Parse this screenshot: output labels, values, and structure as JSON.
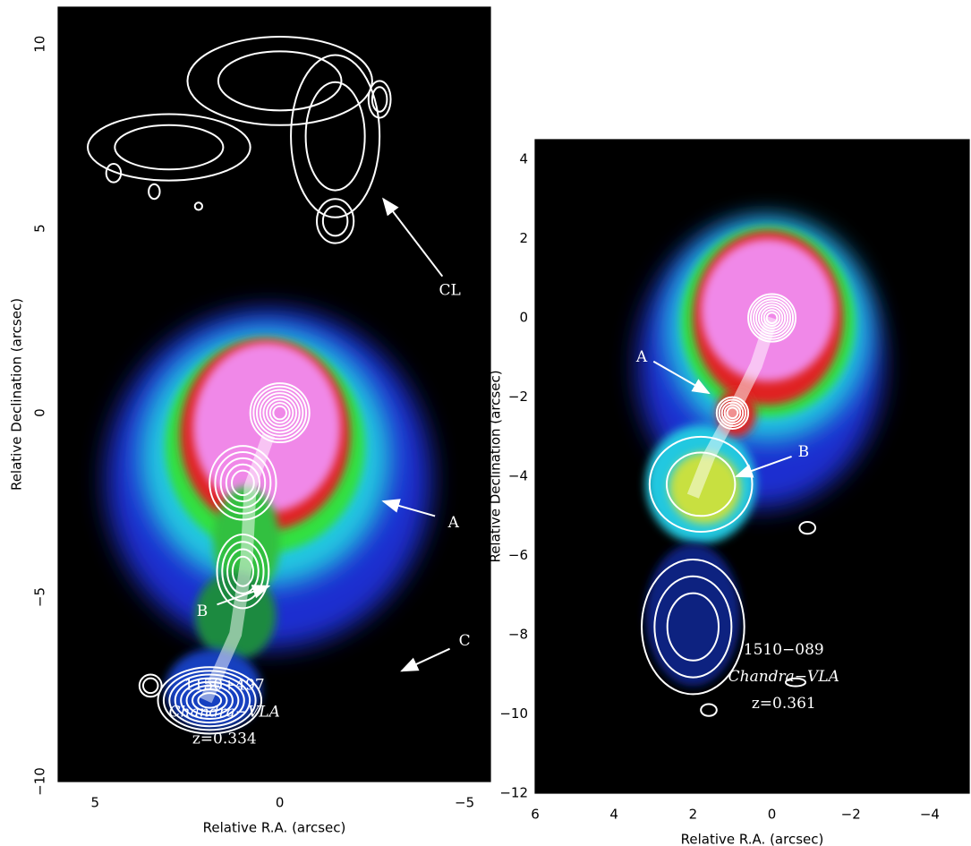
{
  "chart_data": [
    {
      "type": "image",
      "xlabel": "Relative R.A. (arcsec)",
      "ylabel": "Relative Declination (arcsec)",
      "xlim": [
        6,
        -5.7
      ],
      "ylim": [
        -10,
        11
      ],
      "xticks": [
        5,
        0,
        {
          "value": -5,
          "label": "−5"
        }
      ],
      "yticks": [
        10,
        5,
        0,
        {
          "value": -5,
          "label": "−5"
        },
        {
          "value": -10,
          "label": "−10"
        }
      ],
      "annotations": [
        "A",
        "B",
        "C",
        "CL"
      ],
      "source": "1150+497",
      "instrument": "Chandra−VLA",
      "redshift": "z=0.334"
    },
    {
      "type": "image",
      "xlabel": "Relative R.A. (arcsec)",
      "ylabel": "Relative Declination (arcsec)",
      "xlim": [
        6,
        -5
      ],
      "ylim": [
        -12,
        4.5
      ],
      "xticks": [
        6,
        4,
        2,
        0,
        {
          "value": -2,
          "label": "−2"
        },
        {
          "value": -4,
          "label": "−4"
        }
      ],
      "yticks": [
        4,
        2,
        0,
        {
          "value": -2,
          "label": "−2"
        },
        {
          "value": -4,
          "label": "−4"
        },
        {
          "value": -6,
          "label": "−6"
        },
        {
          "value": -8,
          "label": "−8"
        },
        {
          "value": -10,
          "label": "−10"
        },
        {
          "value": -12,
          "label": "−12"
        }
      ],
      "annotations": [
        "A",
        "B"
      ],
      "source": "1510−089",
      "instrument": "Chandra−VLA",
      "redshift": "z=0.361"
    }
  ]
}
